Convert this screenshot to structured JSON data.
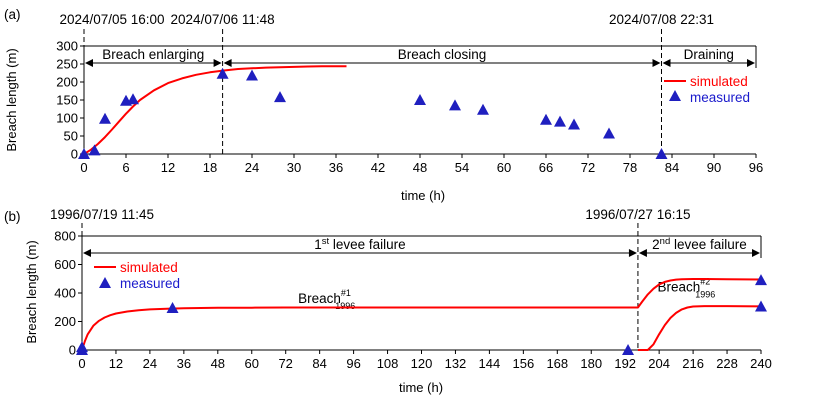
{
  "colors": {
    "simulated": "#ff0000",
    "measured": "#1f1fbf",
    "legend_measured_text": "#1a1acc",
    "axis": "#000000"
  },
  "chart_data": [
    {
      "panel_label": "(a)",
      "type": "line",
      "xlabel": "time (h)",
      "ylabel": "Breach length (m)",
      "xlim": [
        0,
        96
      ],
      "ylim": [
        0,
        300
      ],
      "xticks": [
        0,
        6,
        12,
        18,
        24,
        30,
        36,
        42,
        48,
        54,
        60,
        66,
        72,
        78,
        84,
        90,
        96
      ],
      "yticks": [
        0,
        50,
        100,
        150,
        200,
        250,
        300
      ],
      "grid": false,
      "legend_position": "right",
      "event_lines": [
        {
          "x": 0,
          "label": "2024/07/05 16:00"
        },
        {
          "x": 19.8,
          "label": "2024/07/06 11:48"
        },
        {
          "x": 82.5,
          "label": "2024/07/08 22:31"
        }
      ],
      "phases": [
        {
          "start": 0,
          "end": 19.8,
          "label": "Breach enlarging"
        },
        {
          "start": 19.8,
          "end": 82.5,
          "label": "Breach closing"
        },
        {
          "start": 82.5,
          "end": 96,
          "label": "Draining"
        }
      ],
      "series": [
        {
          "name": "simulated",
          "style": "line",
          "x": [
            0,
            1,
            2,
            3,
            4,
            5,
            6,
            7,
            8,
            10,
            12,
            14,
            16,
            18,
            20,
            22,
            24,
            26,
            28,
            30,
            32,
            34,
            36,
            37.5
          ],
          "y": [
            0,
            12,
            28,
            47,
            68,
            90,
            112,
            132,
            150,
            177,
            197,
            210,
            220,
            227,
            232,
            236,
            238,
            240,
            241,
            242,
            243,
            243.5,
            244,
            244
          ]
        },
        {
          "name": "measured",
          "style": "triangle",
          "x": [
            0,
            1.5,
            3,
            6,
            7,
            19.8,
            24,
            28,
            48,
            53,
            57,
            66,
            68,
            70,
            75,
            82.5
          ],
          "y": [
            0,
            10,
            98,
            148,
            152,
            223,
            218,
            158,
            150,
            135,
            123,
            95,
            90,
            82,
            57,
            0
          ]
        }
      ]
    },
    {
      "panel_label": "(b)",
      "type": "line",
      "xlabel": "time (h)",
      "ylabel": "Breach length (m)",
      "xlim": [
        0,
        240
      ],
      "ylim": [
        0,
        800
      ],
      "xticks": [
        0,
        12,
        24,
        36,
        48,
        60,
        72,
        84,
        96,
        108,
        120,
        132,
        144,
        156,
        168,
        180,
        192,
        204,
        216,
        228,
        240
      ],
      "yticks": [
        0,
        200,
        400,
        600,
        800
      ],
      "grid": false,
      "legend_position": "top-left",
      "event_lines": [
        {
          "x": 0,
          "label": "1996/07/19 11:45"
        },
        {
          "x": 196.5,
          "label": "1996/07/27 16:15"
        }
      ],
      "phases": [
        {
          "start": 0,
          "end": 196.5,
          "label_main": "1",
          "label_sup": "st",
          "label_rest": " levee failure"
        },
        {
          "start": 196.5,
          "end": 240,
          "label_main": "2",
          "label_sup": "nd",
          "label_rest": " levee failure"
        }
      ],
      "annotations": [
        {
          "x": 87,
          "y": 330,
          "main": "Breach",
          "sup": "#1",
          "sub": "1996"
        },
        {
          "x": 214,
          "y": 410,
          "main": "Breach",
          "sup": "#2",
          "sub": "1996"
        }
      ],
      "series": [
        {
          "name": "simulated",
          "style": "line",
          "x": [
            0,
            1,
            2,
            4,
            6,
            8,
            10,
            12,
            16,
            20,
            24,
            30,
            36,
            48,
            60,
            72,
            96,
            120,
            144,
            168,
            196.5,
            198,
            200,
            202,
            204,
            206,
            208,
            210,
            212,
            216,
            220,
            228,
            240
          ],
          "y": [
            0,
            60,
            110,
            170,
            205,
            228,
            244,
            256,
            270,
            279,
            285,
            290,
            293,
            296,
            297,
            298,
            298,
            298,
            298,
            298,
            298,
            340,
            390,
            430,
            460,
            478,
            488,
            494,
            497,
            498,
            498,
            497,
            495
          ]
        },
        {
          "name": "",
          "style": "line",
          "x": [
            196.5,
            200,
            202,
            204,
            206,
            208,
            210,
            212,
            214,
            216,
            220,
            228,
            240
          ],
          "y": [
            0,
            0,
            40,
            110,
            175,
            225,
            260,
            285,
            298,
            305,
            308,
            308,
            306
          ]
        },
        {
          "name": "measured",
          "style": "triangle",
          "x": [
            0,
            0,
            32,
            193,
            240,
            240
          ],
          "y": [
            0,
            20,
            295,
            0,
            490,
            305
          ]
        }
      ]
    }
  ]
}
